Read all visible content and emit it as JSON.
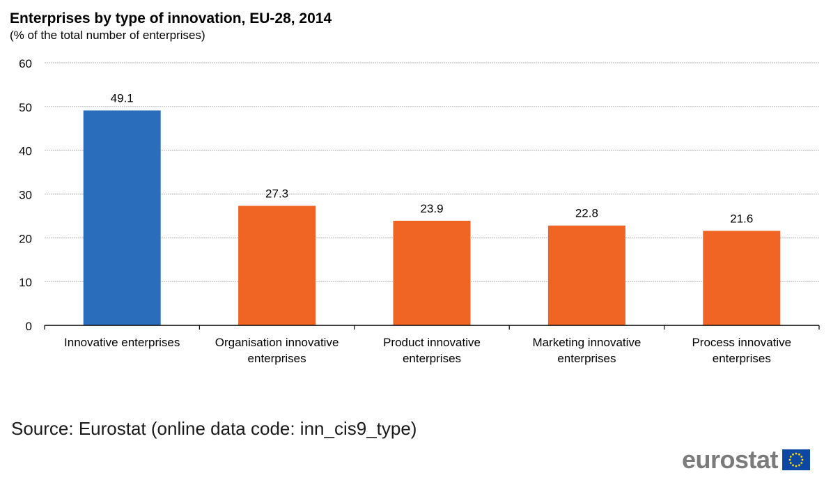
{
  "header": {
    "title": "Enterprises by type of innovation, EU-28, 2014",
    "subtitle": "(% of the total number of enterprises)"
  },
  "footer": {
    "source": "Source: Eurostat (online data code: inn_cis9_type)",
    "logo_text": "eurostat"
  },
  "colors": {
    "highlight_bar": "#2a6ebb",
    "bar": "#f06424",
    "gridline": "#b0b0b0",
    "axis": "#000000",
    "logo_text": "#7b7b7b",
    "flag_blue": "#0e47a1",
    "flag_star": "#ffdd00"
  },
  "chart_data": {
    "type": "bar",
    "title": "Enterprises by type of innovation, EU-28, 2014",
    "subtitle": "(% of the total number of enterprises)",
    "xlabel": "",
    "ylabel": "",
    "categories": [
      [
        "Innovative enterprises"
      ],
      [
        "Organisation innovative",
        "enterprises"
      ],
      [
        "Product innovative",
        "enterprises"
      ],
      [
        "Marketing innovative",
        "enterprises"
      ],
      [
        "Process innovative",
        "enterprises"
      ]
    ],
    "values": [
      49.1,
      27.3,
      23.9,
      22.8,
      21.6
    ],
    "value_labels": [
      "49.1",
      "27.3",
      "23.9",
      "22.8",
      "21.6"
    ],
    "highlight_index": 0,
    "ylim": [
      0,
      60
    ],
    "yticks": [
      0,
      10,
      20,
      30,
      40,
      50,
      60
    ],
    "grid": true,
    "legend": "none"
  }
}
